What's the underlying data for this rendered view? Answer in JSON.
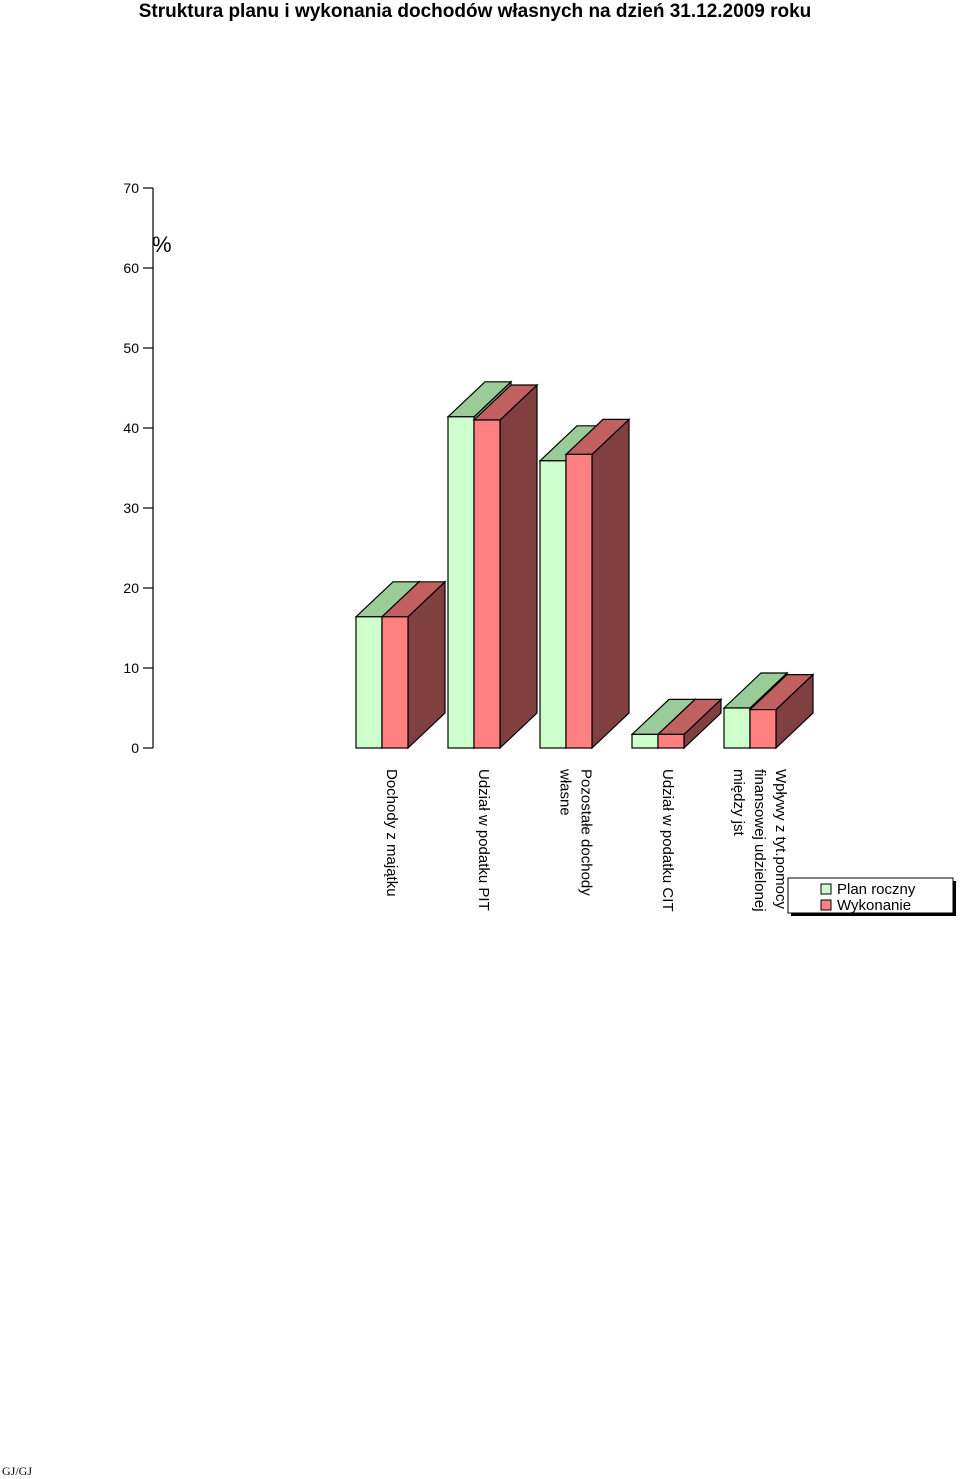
{
  "chart_data": {
    "type": "bar",
    "title": "Struktura planu i wykonania dochodów własnych na dzień 31.12.2009 roku",
    "ylabel": "%",
    "ylim": [
      0,
      70
    ],
    "yticks": [
      0,
      10,
      20,
      30,
      40,
      50,
      60,
      70
    ],
    "categories": [
      [
        "Dochody z majątku"
      ],
      [
        "Udział w podatku PIT"
      ],
      [
        "Pozostałe dochody",
        "własne"
      ],
      [
        "Udział w podatku CIT"
      ],
      [
        "Wpływy z tyt.pomocy",
        "finansowej udzielonej",
        "między jst"
      ]
    ],
    "series": [
      {
        "name": "Plan roczny",
        "values": [
          16.4,
          41.4,
          35.9,
          1.7,
          5.0
        ],
        "front": "#ccffcc",
        "top": "#99cc99",
        "side": "#7a9a7a"
      },
      {
        "name": "Wykonanie",
        "values": [
          16.4,
          41.0,
          36.7,
          1.7,
          4.8
        ],
        "front": "#ff8080",
        "top": "#c06060",
        "side": "#804040"
      }
    ],
    "legend_position": "bottom-right",
    "grid": false
  },
  "footer": "GJ/GJ"
}
